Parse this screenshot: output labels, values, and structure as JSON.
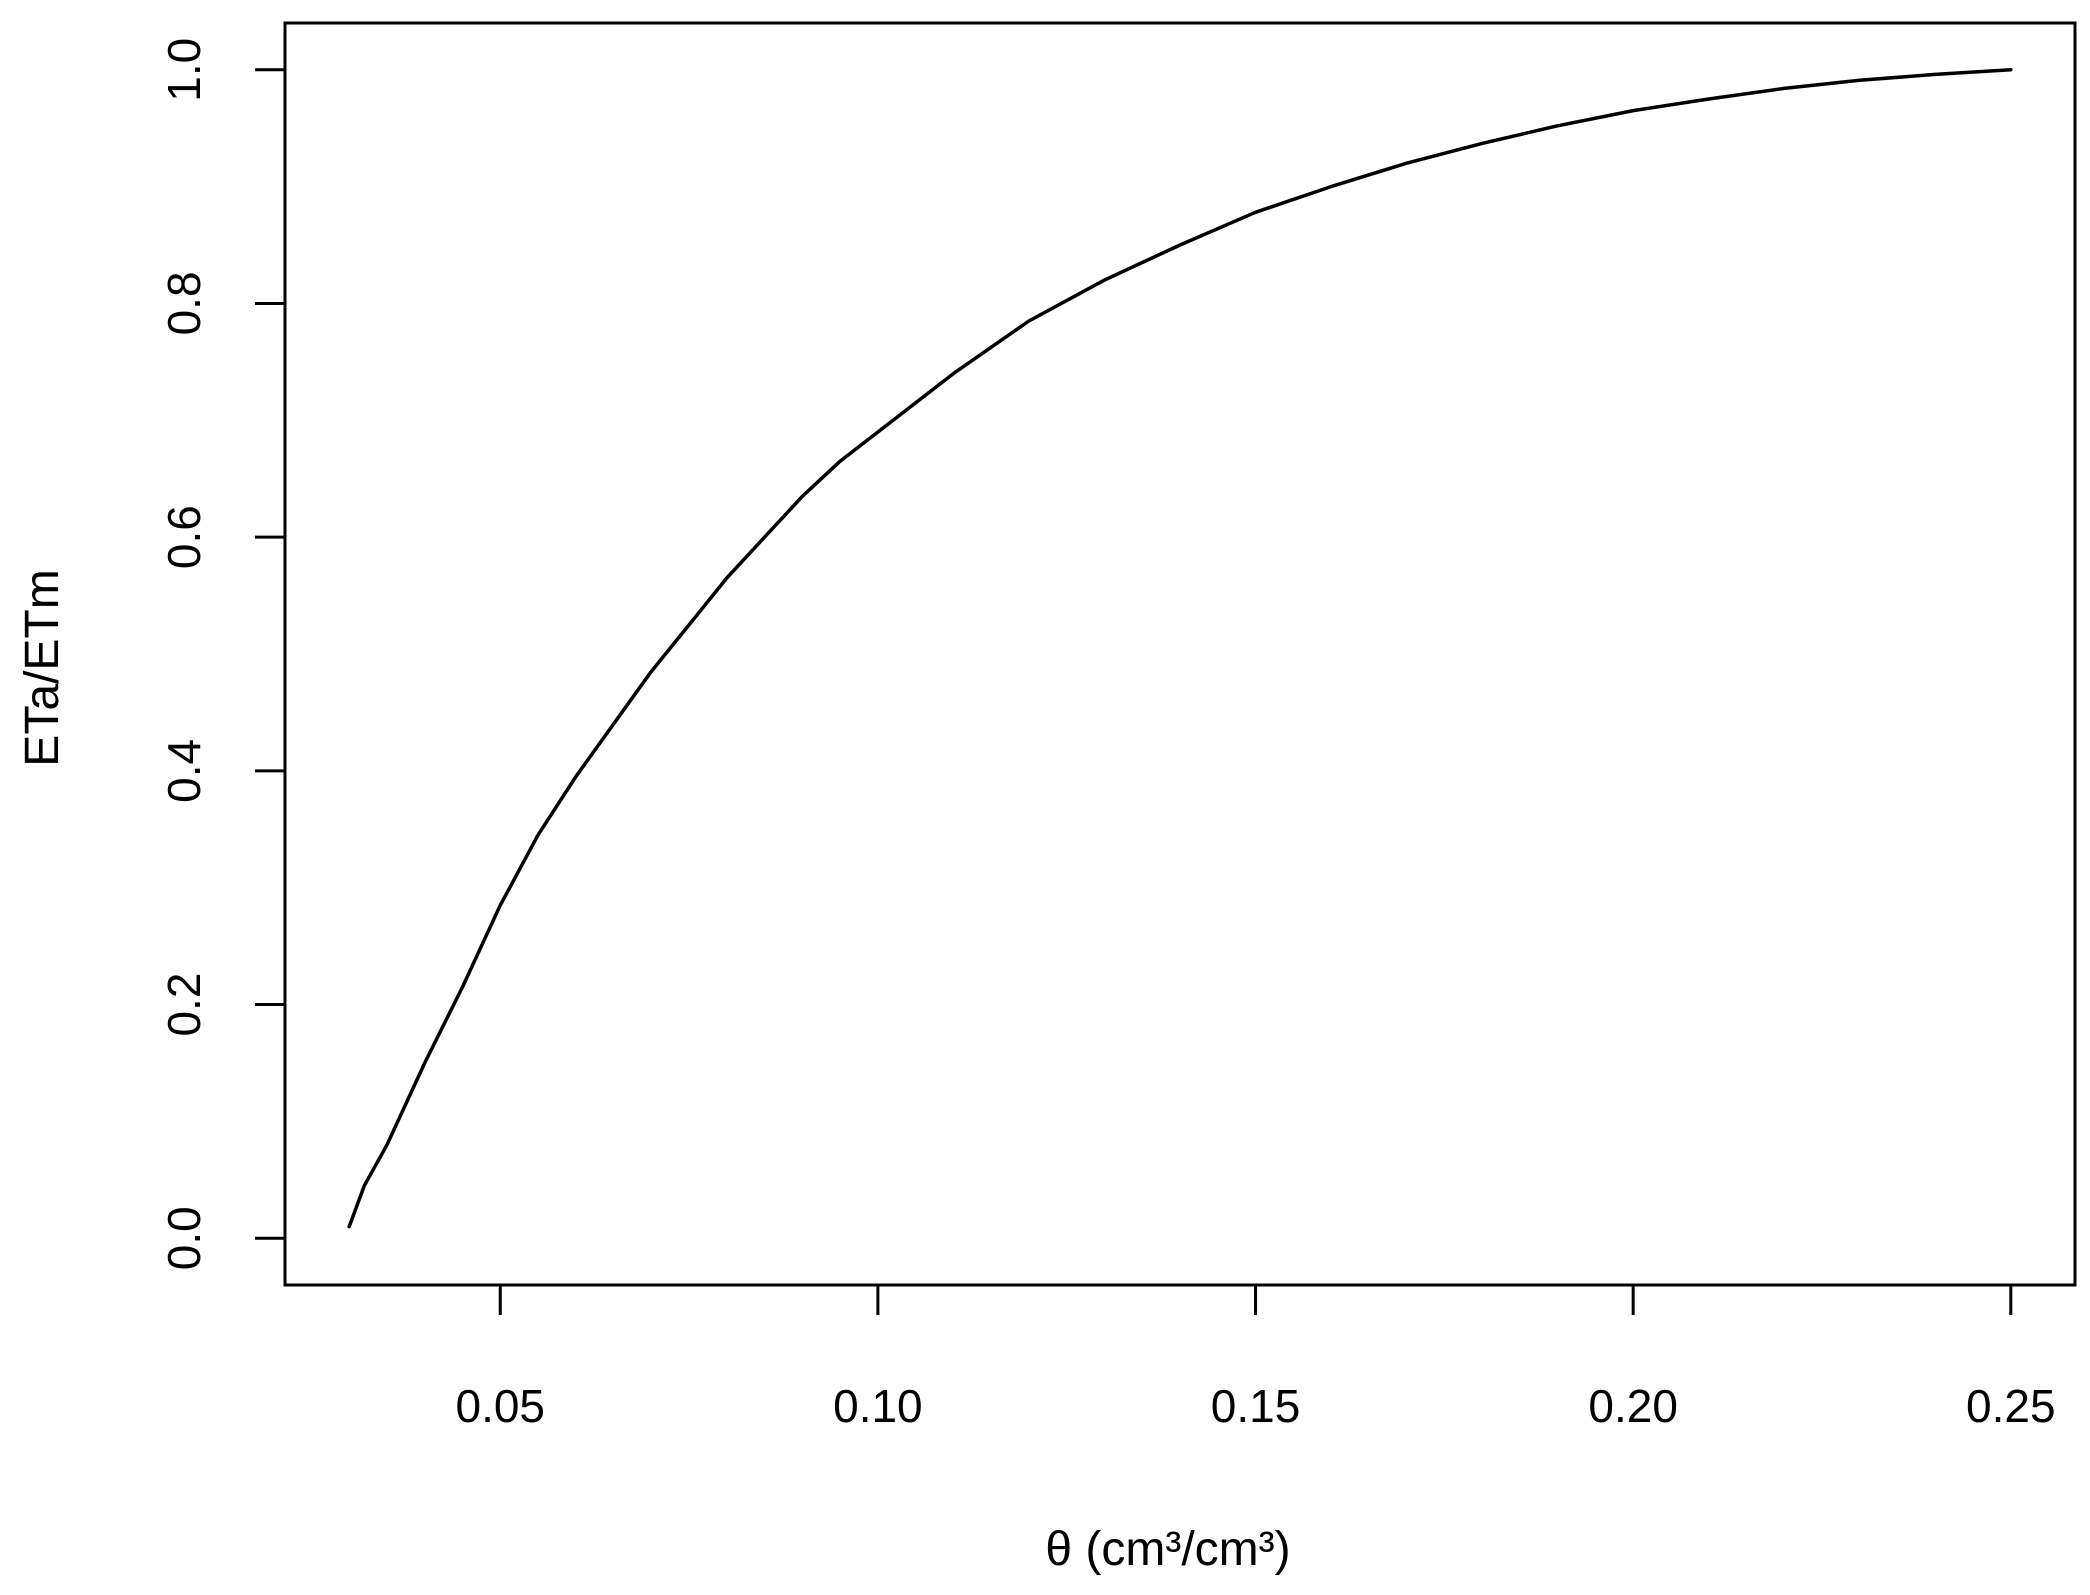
{
  "chart_data": {
    "type": "line",
    "title": "",
    "xlabel": "θ (cm³/cm³)",
    "ylabel": "ETa/ETm",
    "xlim": [
      0.0215,
      0.2585
    ],
    "ylim": [
      -0.04,
      1.04
    ],
    "xticks": [
      0.05,
      0.1,
      0.15,
      0.2,
      0.25
    ],
    "xtick_labels": [
      "0.05",
      "0.10",
      "0.15",
      "0.20",
      "0.25"
    ],
    "yticks": [
      0.0,
      0.2,
      0.4,
      0.6,
      0.8,
      1.0
    ],
    "ytick_labels": [
      "0.0",
      "0.2",
      "0.4",
      "0.6",
      "0.8",
      "1.0"
    ],
    "grid": false,
    "legend": "none",
    "line_color": "#000000",
    "series": [
      {
        "x": [
          0.03,
          0.032,
          0.035,
          0.04,
          0.045,
          0.05,
          0.055,
          0.06,
          0.065,
          0.07,
          0.075,
          0.08,
          0.085,
          0.09,
          0.095,
          0.1,
          0.11,
          0.12,
          0.13,
          0.14,
          0.15,
          0.16,
          0.17,
          0.18,
          0.19,
          0.2,
          0.21,
          0.22,
          0.23,
          0.24,
          0.25
        ],
        "y": [
          0.01,
          0.045,
          0.08,
          0.15,
          0.215,
          0.285,
          0.345,
          0.395,
          0.44,
          0.485,
          0.525,
          0.565,
          0.6,
          0.635,
          0.665,
          0.69,
          0.74,
          0.785,
          0.82,
          0.85,
          0.878,
          0.9,
          0.92,
          0.937,
          0.952,
          0.965,
          0.975,
          0.984,
          0.991,
          0.996,
          1.0
        ]
      }
    ]
  }
}
